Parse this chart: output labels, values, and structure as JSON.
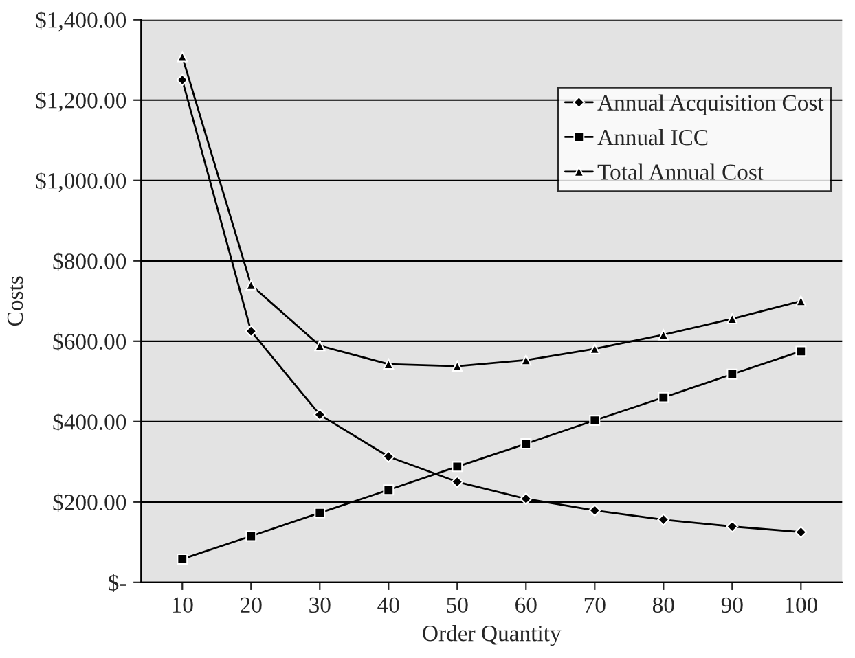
{
  "chart_data": {
    "type": "line",
    "xlabel": "Order Quantity",
    "ylabel": "Costs",
    "categories": [
      "10",
      "20",
      "30",
      "40",
      "50",
      "60",
      "70",
      "80",
      "90",
      "100"
    ],
    "series": [
      {
        "name": "Annual Acquisition Cost",
        "color": "#000000",
        "marker": "diamond",
        "values": [
          1250,
          625,
          417,
          313,
          250,
          208,
          179,
          156,
          139,
          125
        ]
      },
      {
        "name": "Annual ICC",
        "color": "#000000",
        "marker": "square",
        "values": [
          58,
          115,
          173,
          230,
          288,
          345,
          403,
          460,
          518,
          575
        ]
      },
      {
        "name": "Total Annual Cost",
        "color": "#000000",
        "marker": "triangle",
        "values": [
          1308,
          740,
          589,
          543,
          538,
          553,
          581,
          616,
          656,
          700
        ]
      }
    ],
    "ylim": [
      0,
      1400
    ],
    "yticks": [
      {
        "value": 0,
        "label": "$-"
      },
      {
        "value": 200,
        "label": "$200.00"
      },
      {
        "value": 400,
        "label": "$400.00"
      },
      {
        "value": 600,
        "label": "$600.00"
      },
      {
        "value": 800,
        "label": "$800.00"
      },
      {
        "value": 1000,
        "label": "$1,000.00"
      },
      {
        "value": 1200,
        "label": "$1,200.00"
      },
      {
        "value": 1400,
        "label": "$1,400.00"
      }
    ],
    "grid": "y",
    "legend": "top right",
    "line_style": "solid"
  }
}
